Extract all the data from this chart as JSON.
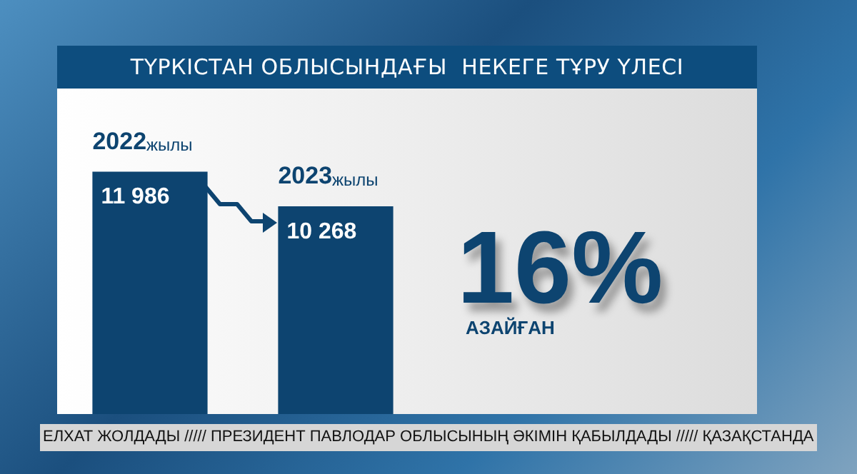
{
  "chart_data": {
    "type": "bar",
    "title": "ТҮРКІСТАН ОБЛЫСЫНДАҒЫ  НЕКЕГЕ ТҰРУ ҮЛЕСІ",
    "categories": [
      "2022жылы",
      "2023жылы"
    ],
    "values": [
      11986,
      10268
    ],
    "value_labels": [
      "11 986",
      "10 268"
    ],
    "color": "#0d4470",
    "legend": false,
    "annotations": [
      "16%",
      "АЗАЙҒАН",
      "ЕЛХАТ ЖОЛДАДЫ ///// ПРЕЗИДЕНТ ПАВЛОДАР ОБЛЫСЫНЫҢ ӘКІМІН ҚАБЫЛДАДЫ ///// ҚАЗАҚСТАНДА"
    ]
  }
}
